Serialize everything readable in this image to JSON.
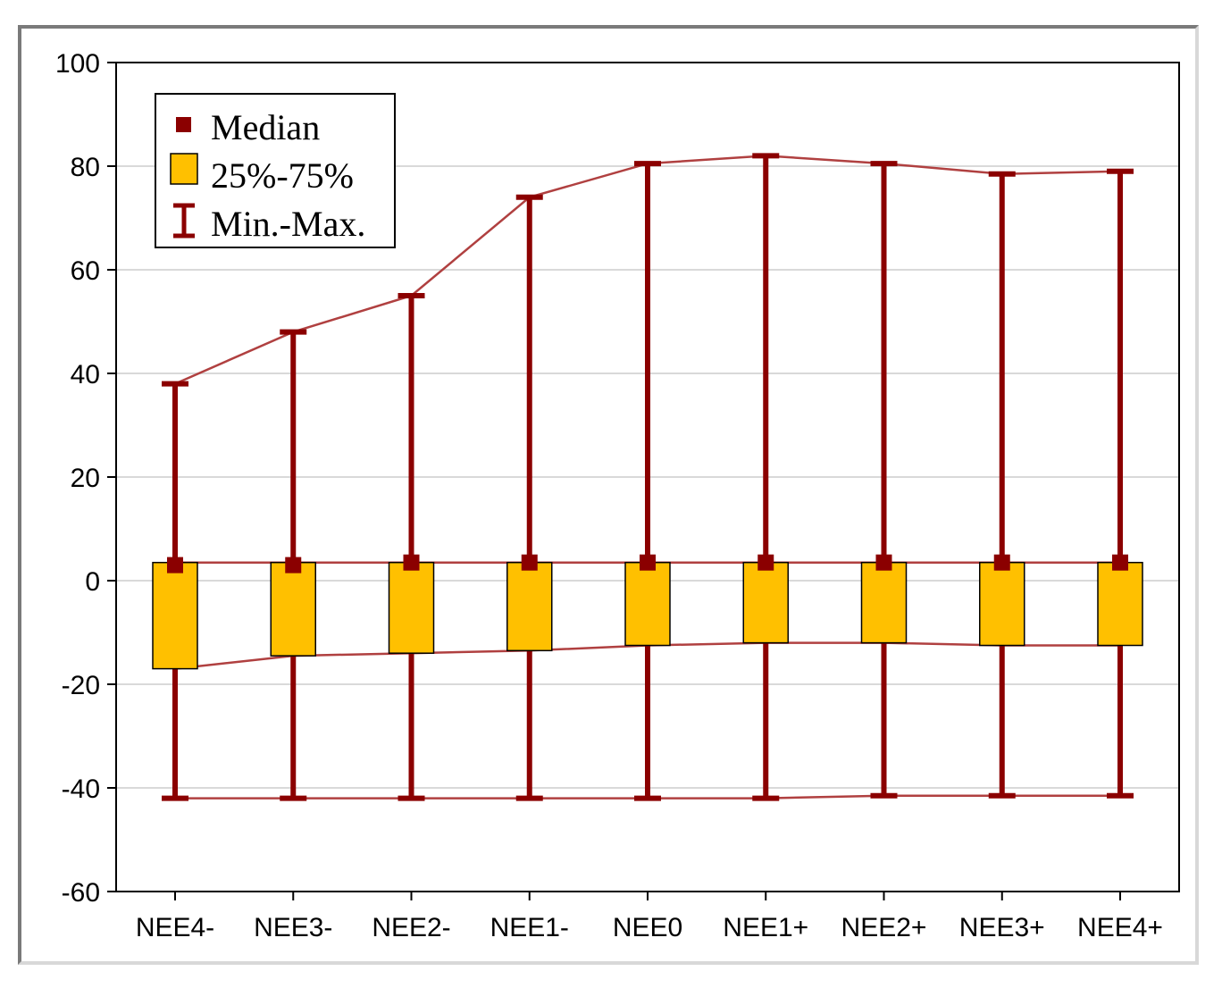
{
  "chart_data": {
    "type": "box",
    "categories": [
      "NEE4-",
      "NEE3-",
      "NEE2-",
      "NEE1-",
      "NEE0",
      "NEE1+",
      "NEE2+",
      "NEE3+",
      "NEE4+"
    ],
    "series": [
      {
        "name": "Median",
        "values": [
          3,
          3,
          3.5,
          3.5,
          3.5,
          3.5,
          3.5,
          3.5,
          3.5
        ]
      },
      {
        "name": "25%-75%",
        "q1": [
          -17,
          -14.5,
          -14,
          -13.5,
          -12.5,
          -12,
          -12,
          -12.5,
          -12.5
        ],
        "q3": [
          3.5,
          3.5,
          3.5,
          3.5,
          3.5,
          3.5,
          3.5,
          3.5,
          3.5
        ]
      },
      {
        "name": "Min.-Max.",
        "min": [
          -42,
          -42,
          -42,
          -42,
          -42,
          -42,
          -41.5,
          -41.5,
          -41.5
        ],
        "max": [
          38,
          48,
          55,
          74,
          80.5,
          82,
          80.5,
          78.5,
          79
        ]
      }
    ],
    "ylim": [
      -60,
      100
    ],
    "yticks": [
      "-60",
      "-40",
      "-20",
      "0",
      "20",
      "40",
      "60",
      "80",
      "100"
    ],
    "grid": true,
    "legend_position": "top-left",
    "legend": [
      {
        "label": "Median",
        "icon": "median-square-marker"
      },
      {
        "label": "25%-75%",
        "icon": "box-swatch"
      },
      {
        "label": "Min.-Max.",
        "icon": "whisker-marker"
      }
    ],
    "colors": {
      "whisker": "#8b0000",
      "box_fill": "#ffc000",
      "connector": "#b04040",
      "grid": "#d9d9d9"
    }
  }
}
